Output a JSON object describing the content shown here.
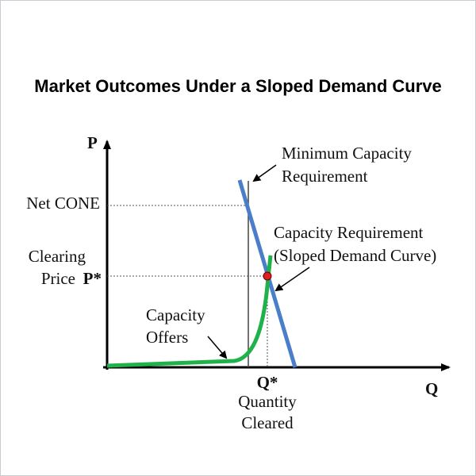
{
  "title": "Market Outcomes Under a Sloped Demand Curve",
  "axes": {
    "y_label": "P",
    "x_label": "Q"
  },
  "price_labels": {
    "net_cone": "Net CONE",
    "clearing_line1": "Clearing",
    "clearing_line2": "Price",
    "p_star": "P*"
  },
  "quantity_labels": {
    "q_star": "Q*",
    "line1": "Quantity",
    "line2": "Cleared"
  },
  "annotations": {
    "minimum_capacity": [
      "Minimum Capacity",
      "Requirement"
    ],
    "sloped_demand": [
      "Capacity Requirement",
      "(Sloped Demand Curve)"
    ],
    "capacity_offers": [
      "Capacity",
      "Offers"
    ]
  }
}
